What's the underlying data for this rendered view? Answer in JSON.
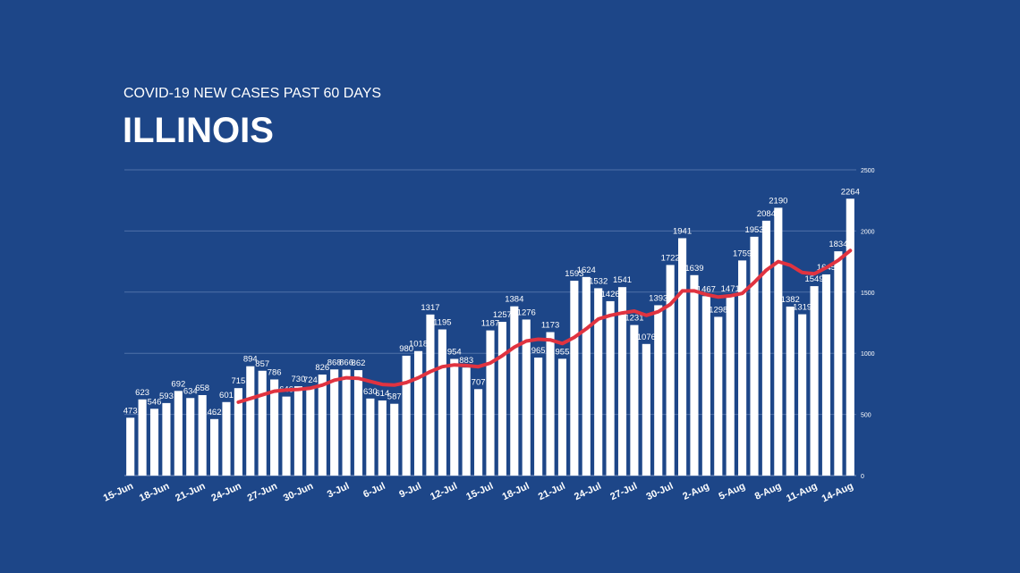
{
  "chart_data": {
    "type": "bar",
    "subtitle": "COVID-19 NEW CASES PAST 60 DAYS",
    "title": "ILLINOIS",
    "categories": [
      "15-Jun",
      null,
      null,
      "18-Jun",
      null,
      null,
      "21-Jun",
      null,
      null,
      "24-Jun",
      null,
      null,
      "27-Jun",
      null,
      null,
      "30-Jun",
      null,
      null,
      "3-Jul",
      null,
      null,
      "6-Jul",
      null,
      null,
      "9-Jul",
      null,
      null,
      "12-Jul",
      null,
      null,
      "15-Jul",
      null,
      null,
      "18-Jul",
      null,
      null,
      "21-Jul",
      null,
      null,
      "24-Jul",
      null,
      null,
      "27-Jul",
      null,
      null,
      "30-Jul",
      null,
      null,
      "2-Aug",
      null,
      null,
      "5-Aug",
      null,
      null,
      "8-Aug",
      null,
      null,
      "11-Aug",
      null,
      null,
      "14-Aug"
    ],
    "series": [
      {
        "type": "bar",
        "color": "#ffffff",
        "values": [
          473,
          623,
          546,
          593,
          692,
          634,
          658,
          462,
          601,
          715,
          894,
          857,
          786,
          646,
          730,
          724,
          826,
          868,
          866,
          862,
          630,
          614,
          587,
          980,
          1018,
          1317,
          1195,
          954,
          883,
          707,
          1187,
          1257,
          1384,
          1276,
          965,
          1173,
          955,
          1593,
          1624,
          1532,
          1426,
          1541,
          1231,
          1076,
          1393,
          1722,
          1941,
          1639,
          1467,
          1298,
          1471,
          1759,
          1953,
          2084,
          2190,
          1382,
          1319,
          1549,
          1645,
          1834,
          2264
        ]
      },
      {
        "type": "line",
        "color": "#e03340",
        "values": [
          null,
          null,
          null,
          null,
          null,
          null,
          null,
          null,
          null,
          600,
          630,
          660,
          690,
          700,
          705,
          715,
          740,
          780,
          800,
          795,
          770,
          745,
          740,
          760,
          800,
          850,
          890,
          905,
          900,
          890,
          920,
          980,
          1050,
          1100,
          1115,
          1110,
          1080,
          1130,
          1200,
          1280,
          1310,
          1330,
          1345,
          1310,
          1340,
          1400,
          1510,
          1510,
          1480,
          1460,
          1470,
          1490,
          1580,
          1680,
          1750,
          1720,
          1660,
          1650,
          1700,
          1760,
          1840
        ]
      }
    ],
    "ylim": [
      0,
      2500
    ],
    "yticks": [
      0,
      500,
      1000,
      1500,
      2000,
      2500
    ],
    "grid": true
  }
}
